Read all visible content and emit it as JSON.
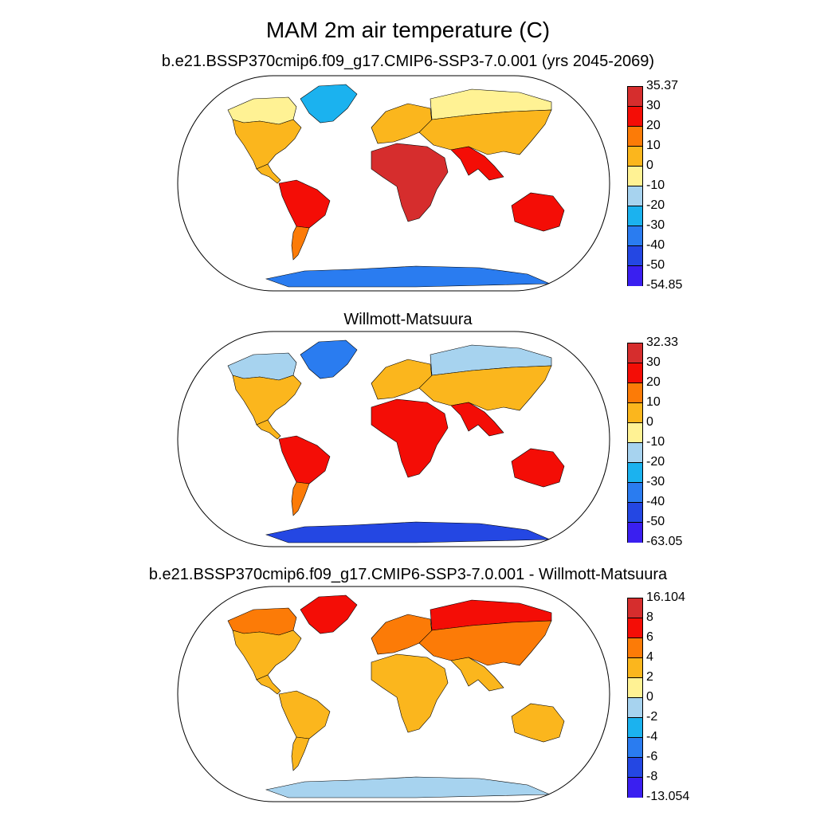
{
  "title": "MAM 2m air temperature (C)",
  "colors": [
    "#3a1ff0",
    "#2447e3",
    "#2a7cf0",
    "#1bb2ef",
    "#a7d3ef",
    "#fff294",
    "#fbb61d",
    "#fc7b07",
    "#f40d06",
    "#d62d2d"
  ],
  "panels": [
    {
      "title": "b.e21.BSSP370cmip6.f09_g17.CMIP6-SSP3-7.0.001 (yrs 2045-2069)",
      "colorbar": [
        "35.37",
        "30",
        "20",
        "10",
        "0",
        "-10",
        "-20",
        "-30",
        "-40",
        "-50",
        "-54.85"
      ],
      "fills": {
        "northAmerica": 6,
        "northAmericaNorth": 5,
        "greenland": 3,
        "southAmerica": 8,
        "southAmericaSouth": 7,
        "africa": 9,
        "europe": 6,
        "asia": 6,
        "asiaNorth": 5,
        "southAsia": 8,
        "australia": 8,
        "antarctica": 2
      }
    },
    {
      "title": "Willmott-Matsuura",
      "colorbar": [
        "32.33",
        "30",
        "20",
        "10",
        "0",
        "-10",
        "-20",
        "-30",
        "-40",
        "-50",
        "-63.05"
      ],
      "fills": {
        "northAmerica": 6,
        "northAmericaNorth": 4,
        "greenland": 2,
        "southAmerica": 8,
        "southAmericaSouth": 7,
        "africa": 8,
        "europe": 6,
        "asia": 6,
        "asiaNorth": 4,
        "southAsia": 8,
        "australia": 8,
        "antarctica": 1
      }
    },
    {
      "title": "b.e21.BSSP370cmip6.f09_g17.CMIP6-SSP3-7.0.001 - Willmott-Matsuura",
      "colorbar": [
        "16.104",
        "8",
        "6",
        "4",
        "2",
        "0",
        "-2",
        "-4",
        "-6",
        "-8",
        "-13.054"
      ],
      "fills": {
        "northAmerica": 6,
        "northAmericaNorth": 7,
        "greenland": 8,
        "southAmerica": 6,
        "southAmericaSouth": 6,
        "africa": 6,
        "europe": 7,
        "asia": 7,
        "asiaNorth": 8,
        "southAsia": 6,
        "australia": 6,
        "antarctica": 4
      }
    }
  ]
}
